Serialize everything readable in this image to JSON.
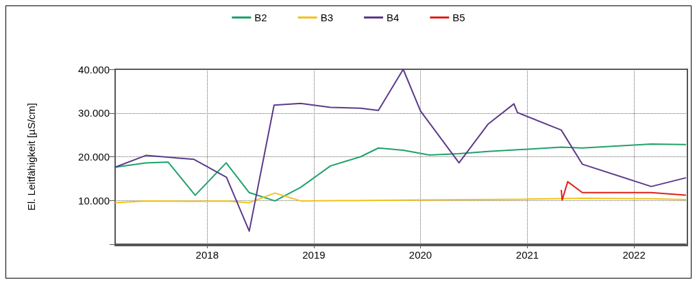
{
  "chart_data": {
    "type": "line",
    "ylabel": "El. Leitfähigkeit [µS/cm]",
    "xlim": [
      "2017-02-20",
      "2022-06-28"
    ],
    "xticks": [
      "2018",
      "2019",
      "2020",
      "2021",
      "2022"
    ],
    "ylim": [
      0,
      40000
    ],
    "yticks": [
      {
        "value": 0,
        "label": null
      },
      {
        "value": 10000,
        "label": "10.000"
      },
      {
        "value": 20000,
        "label": "20.000"
      },
      {
        "value": 30000,
        "label": "30.000"
      },
      {
        "value": 40000,
        "label": "40.000"
      }
    ],
    "grid": true,
    "legend": "top",
    "marker": "none",
    "line_style": "solid",
    "series": [
      {
        "name": "B2",
        "color": "#1fa16a",
        "x": [
          "2017-02-20",
          "2017-06-05",
          "2017-08-20",
          "2017-11-21",
          "2018-03-07",
          "2018-05-25",
          "2018-08-21",
          "2018-11-17",
          "2019-02-27",
          "2019-06-10",
          "2019-08-10",
          "2019-11-03",
          "2020-02-01",
          "2020-05-12",
          "2020-08-20",
          "2021-04-27",
          "2021-07-08",
          "2022-03-01",
          "2022-06-28"
        ],
        "values": [
          17600,
          18600,
          18800,
          11200,
          18600,
          11800,
          9900,
          13000,
          17900,
          20000,
          22000,
          21500,
          20400,
          20700,
          21200,
          22200,
          22000,
          22900,
          22800
        ]
      },
      {
        "name": "B3",
        "color": "#f2c21b",
        "x": [
          "2017-02-20",
          "2017-06-05",
          "2017-11-21",
          "2018-03-07",
          "2018-05-25",
          "2018-08-21",
          "2018-11-17",
          "2019-06-10",
          "2020-01-01",
          "2021-01-01",
          "2021-07-08",
          "2022-03-01",
          "2022-06-28"
        ],
        "values": [
          9500,
          9900,
          9800,
          9900,
          9500,
          11700,
          9900,
          10000,
          10100,
          10300,
          10500,
          10400,
          10200
        ]
      },
      {
        "name": "B4",
        "color": "#5b3a8a",
        "x": [
          "2017-02-20",
          "2017-06-05",
          "2017-11-17",
          "2018-03-08",
          "2018-05-25",
          "2018-08-18",
          "2018-11-17",
          "2019-02-27",
          "2019-06-10",
          "2019-08-10",
          "2019-11-03",
          "2020-01-01",
          "2020-05-12",
          "2020-08-20",
          "2020-11-16",
          "2020-11-28",
          "2021-04-27",
          "2021-07-08",
          "2022-03-01",
          "2022-06-28"
        ],
        "values": [
          17600,
          20300,
          19400,
          15300,
          3000,
          31800,
          32200,
          31300,
          31100,
          30600,
          40000,
          30500,
          18600,
          27500,
          32100,
          30100,
          26100,
          18300,
          13200,
          15200
        ]
      },
      {
        "name": "B5",
        "color": "#e0201b",
        "x": [
          "2021-04-27",
          "2021-04-30",
          "2021-05-19",
          "2021-07-08",
          "2022-03-01",
          "2022-06-28"
        ],
        "values": [
          12400,
          10100,
          14300,
          11800,
          11800,
          11200
        ]
      }
    ]
  }
}
